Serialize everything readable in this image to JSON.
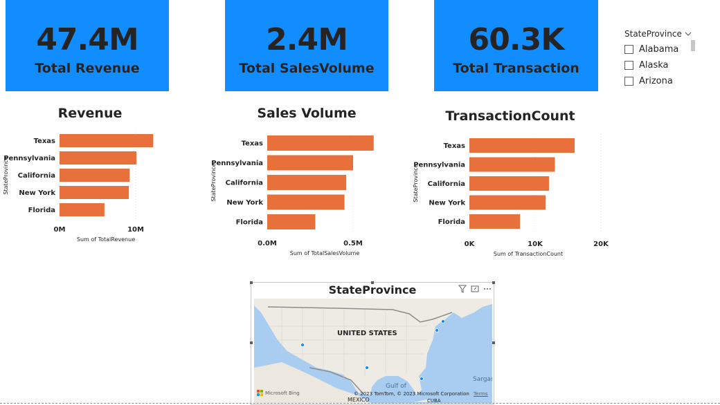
{
  "kpis": [
    {
      "value": "47.4M",
      "label": "Total Revenue"
    },
    {
      "value": "2.4M",
      "label": "Total SalesVolume"
    },
    {
      "value": "60.3K",
      "label": "Total Transaction"
    }
  ],
  "slicer": {
    "title": "StateProvince",
    "items": [
      "Alabama",
      "Alaska",
      "Arizona"
    ]
  },
  "colors": {
    "kpi_bg": "#118dff",
    "bar": "#e8703a"
  },
  "chart_data": [
    {
      "type": "bar",
      "orientation": "horizontal",
      "title": "Revenue",
      "categories": [
        "Texas",
        "Pennsylvania",
        "California",
        "New York",
        "Florida"
      ],
      "values": [
        12.3,
        10.1,
        9.2,
        9.1,
        5.9
      ],
      "xlim": [
        0,
        14
      ],
      "ticks": [
        0,
        10
      ],
      "tick_labels": [
        "0M",
        "10M"
      ],
      "xlabel": "Sum of TotalRevenue",
      "ylabel": "StateProvince",
      "unit": "M"
    },
    {
      "type": "bar",
      "orientation": "horizontal",
      "title": "Sales Volume",
      "categories": [
        "Texas",
        "Pennsylvania",
        "California",
        "New York",
        "Florida"
      ],
      "values": [
        0.62,
        0.5,
        0.46,
        0.45,
        0.28
      ],
      "xlim": [
        0,
        0.75
      ],
      "ticks": [
        0,
        0.5
      ],
      "tick_labels": [
        "0.0M",
        "0.5M"
      ],
      "xlabel": "Sum of TotalSalesVolume",
      "ylabel": "StateProvince",
      "unit": "M"
    },
    {
      "type": "bar",
      "orientation": "horizontal",
      "title": "TransactionCount",
      "categories": [
        "Texas",
        "Pennsylvania",
        "California",
        "New York",
        "Florida"
      ],
      "values": [
        16.0,
        13.0,
        12.1,
        11.6,
        7.7
      ],
      "xlim": [
        0,
        20
      ],
      "ticks": [
        0,
        10,
        20
      ],
      "tick_labels": [
        "0K",
        "10K",
        "20K"
      ],
      "xlabel": "Sum of TransactionCount",
      "ylabel": "StateProvince",
      "unit": "K"
    }
  ],
  "map": {
    "title": "StateProvince",
    "country_label": "UNITED STATES",
    "gulf_label": "Gulf of",
    "sargasso_label": "Sargasa",
    "mexico_label": "MEXICO",
    "cuba_label": "CUBA",
    "bing_label": "Microsoft Bing",
    "copyright": "© 2023 TomTom, © 2023 Microsoft Corporation",
    "terms": "Terms",
    "tools": [
      "filter-icon",
      "focus-mode-icon",
      "more-options-icon"
    ]
  }
}
